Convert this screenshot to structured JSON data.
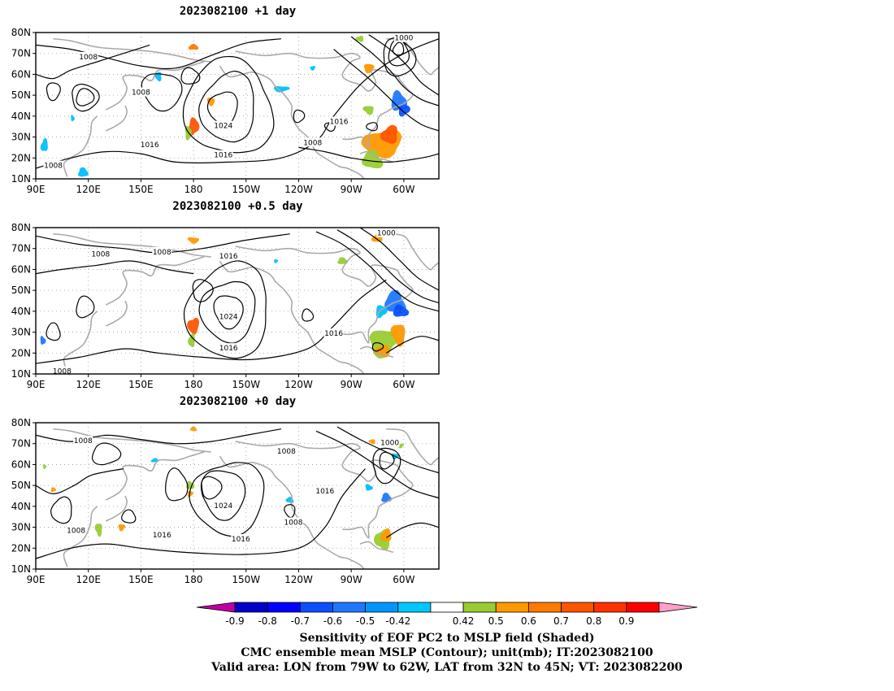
{
  "panels": [
    {
      "title": "2023082100  +1 day",
      "contour_labels": [
        "1008",
        "1008",
        "1024",
        "1016",
        "1016",
        "1016",
        "1008",
        "1000",
        "1008"
      ],
      "shading": [
        {
          "lon": 180,
          "lat": 73,
          "rx": 2.5,
          "ry": 1.5,
          "color": "#ff7a00"
        },
        {
          "lon": 180,
          "lat": 35,
          "rx": 3,
          "ry": 4,
          "color": "#ff5500"
        },
        {
          "lon": 177,
          "lat": 32,
          "rx": 2,
          "ry": 3,
          "color": "#99cc33"
        },
        {
          "lon": 190,
          "lat": 47,
          "rx": 2,
          "ry": 2,
          "color": "#ff9900"
        },
        {
          "lon": -72,
          "lat": 27,
          "rx": 10,
          "ry": 7,
          "color": "#ff9900"
        },
        {
          "lon": -68,
          "lat": 31,
          "rx": 5,
          "ry": 4,
          "color": "#ff5500"
        },
        {
          "lon": -78,
          "lat": 19,
          "rx": 6,
          "ry": 4,
          "color": "#99cc33"
        },
        {
          "lon": -63,
          "lat": 47,
          "rx": 4,
          "ry": 5,
          "color": "#1e78ff"
        },
        {
          "lon": -60,
          "lat": 43,
          "rx": 3,
          "ry": 3,
          "color": "#0a50ff"
        },
        {
          "lon": -80,
          "lat": 63,
          "rx": 3,
          "ry": 2,
          "color": "#ff9900"
        },
        {
          "lon": -80,
          "lat": 43,
          "rx": 3,
          "ry": 2,
          "color": "#99cc33"
        },
        {
          "lon": -85,
          "lat": 77,
          "rx": 2,
          "ry": 1.5,
          "color": "#99cc33"
        },
        {
          "lon": 95,
          "lat": 26,
          "rx": 2,
          "ry": 3,
          "color": "#00bfff"
        },
        {
          "lon": 117,
          "lat": 13,
          "rx": 3,
          "ry": 2,
          "color": "#00bfff"
        },
        {
          "lon": 111,
          "lat": 39,
          "rx": 1,
          "ry": 1.5,
          "color": "#00bfff"
        },
        {
          "lon": -130,
          "lat": 53,
          "rx": 4,
          "ry": 1.5,
          "color": "#00bfff"
        },
        {
          "lon": -112,
          "lat": 63,
          "rx": 1.5,
          "ry": 1,
          "color": "#00bfff"
        },
        {
          "lon": 160,
          "lat": 59,
          "rx": 2,
          "ry": 2,
          "color": "#00bfff"
        }
      ]
    },
    {
      "title": "2023082100  +0.5 day",
      "contour_labels": [
        "1008",
        "1008",
        "1016",
        "1024",
        "1016",
        "1016",
        "1000",
        "1008"
      ],
      "shading": [
        {
          "lon": 180,
          "lat": 74,
          "rx": 3,
          "ry": 1.5,
          "color": "#ff9900"
        },
        {
          "lon": 180,
          "lat": 33,
          "rx": 3,
          "ry": 4,
          "color": "#ff5500"
        },
        {
          "lon": 179,
          "lat": 26,
          "rx": 2,
          "ry": 3,
          "color": "#99cc33"
        },
        {
          "lon": -65,
          "lat": 44,
          "rx": 6,
          "ry": 5,
          "color": "#1e78ff"
        },
        {
          "lon": -62,
          "lat": 40,
          "rx": 4,
          "ry": 3,
          "color": "#0a50ff"
        },
        {
          "lon": -73,
          "lat": 40,
          "rx": 3,
          "ry": 3,
          "color": "#00bfff"
        },
        {
          "lon": -72,
          "lat": 25,
          "rx": 8,
          "ry": 6,
          "color": "#99cc33"
        },
        {
          "lon": -63,
          "lat": 29,
          "rx": 4,
          "ry": 5,
          "color": "#ff9900"
        },
        {
          "lon": -72,
          "lat": 21,
          "rx": 4,
          "ry": 3,
          "color": "#ff9900"
        },
        {
          "lon": -75,
          "lat": 75,
          "rx": 3,
          "ry": 2,
          "color": "#ff9900"
        },
        {
          "lon": -95,
          "lat": 64,
          "rx": 3,
          "ry": 1.5,
          "color": "#99cc33"
        },
        {
          "lon": 94,
          "lat": 26,
          "rx": 1.5,
          "ry": 2,
          "color": "#1e78ff"
        },
        {
          "lon": -133,
          "lat": 64,
          "rx": 1,
          "ry": 1,
          "color": "#00bfff"
        }
      ]
    },
    {
      "title": "2023082100  +0 day",
      "contour_labels": [
        "1008",
        "1008",
        "1024",
        "1016",
        "1016",
        "1008",
        "1008",
        "1016",
        "1000"
      ],
      "shading": [
        {
          "lon": 180,
          "lat": 77,
          "rx": 2,
          "ry": 1,
          "color": "#ff9900"
        },
        {
          "lon": 178,
          "lat": 50,
          "rx": 2,
          "ry": 2,
          "color": "#99cc33"
        },
        {
          "lon": 178,
          "lat": 46,
          "rx": 1.5,
          "ry": 1.5,
          "color": "#ff9900"
        },
        {
          "lon": 139,
          "lat": 30,
          "rx": 2,
          "ry": 1.5,
          "color": "#ff9900"
        },
        {
          "lon": 126,
          "lat": 29,
          "rx": 2,
          "ry": 3,
          "color": "#99cc33"
        },
        {
          "lon": -72,
          "lat": 24,
          "rx": 4,
          "ry": 5,
          "color": "#99cc33"
        },
        {
          "lon": -70,
          "lat": 26,
          "rx": 3,
          "ry": 3,
          "color": "#ff9900"
        },
        {
          "lon": -70,
          "lat": 44,
          "rx": 3,
          "ry": 2,
          "color": "#1e78ff"
        },
        {
          "lon": -80,
          "lat": 49,
          "rx": 2,
          "ry": 1.5,
          "color": "#00bfff"
        },
        {
          "lon": -65,
          "lat": 64,
          "rx": 2,
          "ry": 1.5,
          "color": "#00bfff"
        },
        {
          "lon": -62,
          "lat": 69,
          "rx": 2,
          "ry": 1,
          "color": "#99cc33"
        },
        {
          "lon": -78,
          "lat": 71,
          "rx": 2,
          "ry": 1,
          "color": "#ff9900"
        },
        {
          "lon": -125,
          "lat": 43,
          "rx": 2,
          "ry": 1.5,
          "color": "#00bfff"
        },
        {
          "lon": 158,
          "lat": 62,
          "rx": 2,
          "ry": 1,
          "color": "#00bfff"
        },
        {
          "lon": 100,
          "lat": 48,
          "rx": 1.5,
          "ry": 1,
          "color": "#ff9900"
        },
        {
          "lon": 95,
          "lat": 59,
          "rx": 1,
          "ry": 1,
          "color": "#99cc33"
        }
      ]
    }
  ],
  "axes": {
    "lon_ticks": [
      "90E",
      "120E",
      "150E",
      "180",
      "150W",
      "120W",
      "90W",
      "60W"
    ],
    "lat_ticks": [
      "80N",
      "70N",
      "60N",
      "50N",
      "40N",
      "30N",
      "20N",
      "10N"
    ],
    "lon_range": [
      90,
      320
    ],
    "lat_range": [
      10,
      80
    ]
  },
  "colorbar": {
    "colors": [
      "#c000a0",
      "#0000c8",
      "#0000ff",
      "#0a50ff",
      "#1e78ff",
      "#0096ff",
      "#00c8ff",
      "#ffffff",
      "#99cc33",
      "#ff9900",
      "#ff7a00",
      "#ff5500",
      "#ff3300",
      "#ff0000",
      "#ffa0c8"
    ],
    "labels": [
      "-0.9",
      "-0.8",
      "-0.7",
      "-0.6",
      "-0.5",
      "-0.42",
      "0.42",
      "0.5",
      "0.6",
      "0.7",
      "0.8",
      "0.9"
    ]
  },
  "caption": {
    "line1": "Sensitivity of EOF PC2 to MSLP field (Shaded)",
    "line2": "CMC ensemble mean MSLP (Contour); unit(mb); IT:2023082100",
    "line3": "Valid area: LON from 79W to 62W, LAT from 32N to 45N; VT: 2023082200"
  }
}
